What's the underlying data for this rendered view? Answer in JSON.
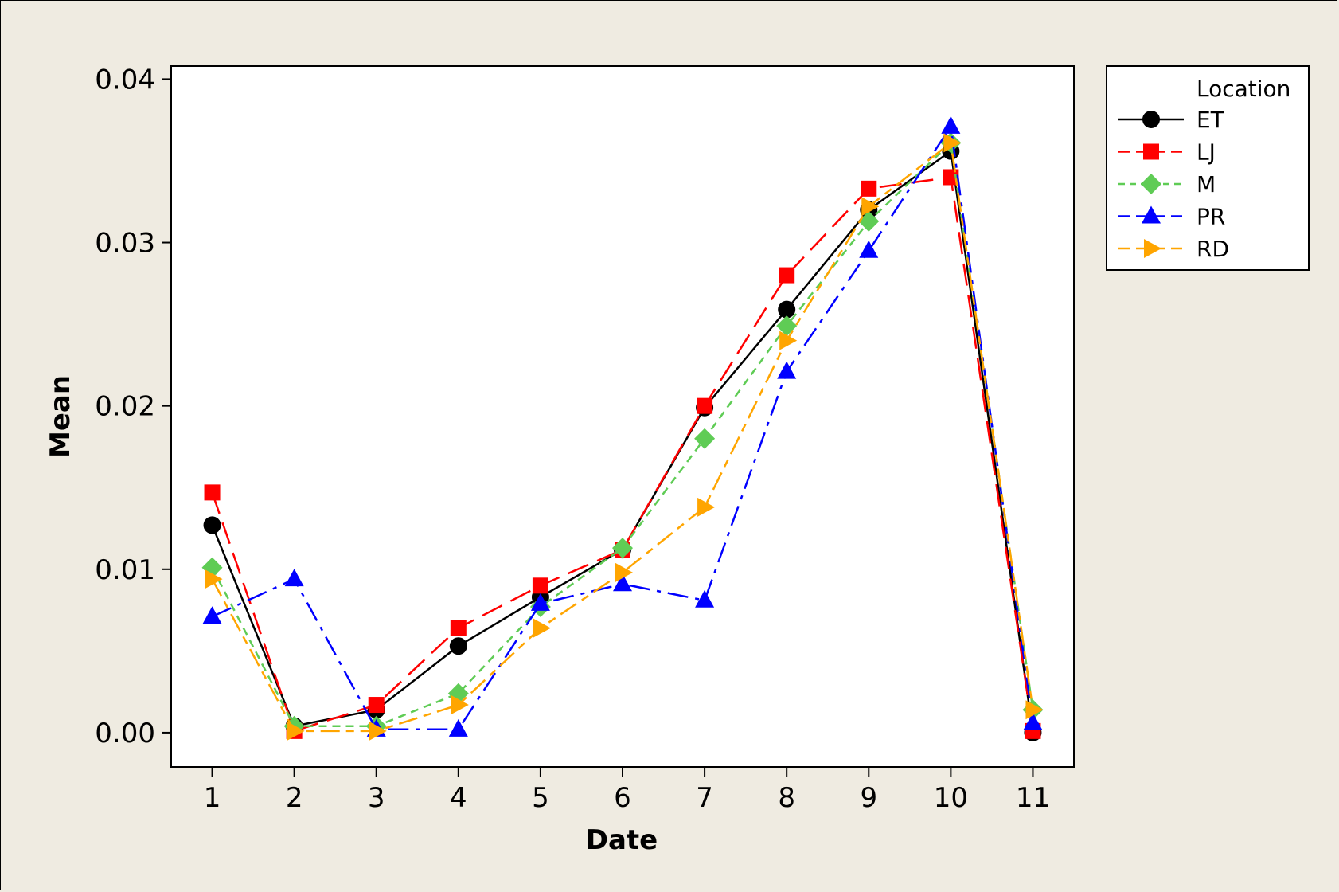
{
  "chart_data": {
    "type": "line",
    "title": "",
    "xlabel": "Date",
    "ylabel": "Mean",
    "x": [
      1,
      2,
      3,
      4,
      5,
      6,
      7,
      8,
      9,
      10,
      11
    ],
    "x_tick_labels": [
      "1",
      "2",
      "3",
      "4",
      "5",
      "6",
      "7",
      "8",
      "9",
      "10",
      "11"
    ],
    "xlim": [
      0.5,
      11.5
    ],
    "ylim": [
      -0.0021,
      0.0408
    ],
    "y_ticks": [
      0.0,
      0.01,
      0.02,
      0.03,
      0.04
    ],
    "y_tick_labels": [
      "0.00",
      "0.01",
      "0.02",
      "0.03",
      "0.04"
    ],
    "grid": false,
    "legend": {
      "title": "Location",
      "placement": "right"
    },
    "series": [
      {
        "name": "ET",
        "color": "#000000",
        "marker": "circle",
        "dash": "solid",
        "values": [
          0.0127,
          0.0004,
          0.0014,
          0.0053,
          0.0083,
          0.0112,
          0.0199,
          0.0259,
          0.032,
          0.0356,
          0.0
        ]
      },
      {
        "name": "LJ",
        "color": "#ff0000",
        "marker": "square",
        "dash": "long-dash",
        "values": [
          0.0147,
          0.0001,
          0.0017,
          0.0064,
          0.009,
          0.0112,
          0.02,
          0.028,
          0.0333,
          0.034,
          0.0001
        ]
      },
      {
        "name": "M",
        "color": "#5fcc55",
        "marker": "diamond",
        "dash": "short-dash",
        "values": [
          0.0101,
          0.0004,
          0.0004,
          0.0024,
          0.0077,
          0.0113,
          0.018,
          0.0249,
          0.0313,
          0.0361,
          0.0014
        ]
      },
      {
        "name": "PR",
        "color": "#0000ff",
        "marker": "triangle-up",
        "dash": "dash-dot",
        "values": [
          0.0071,
          0.0094,
          0.0002,
          0.0002,
          0.0079,
          0.0091,
          0.0081,
          0.0221,
          0.0295,
          0.0371,
          0.0006
        ]
      },
      {
        "name": "RD",
        "color": "#ffa500",
        "marker": "triangle-right",
        "dash": "long-short",
        "values": [
          0.0094,
          0.0001,
          0.0001,
          0.0017,
          0.0064,
          0.0098,
          0.0138,
          0.024,
          0.0322,
          0.0361,
          0.0014
        ]
      }
    ]
  }
}
